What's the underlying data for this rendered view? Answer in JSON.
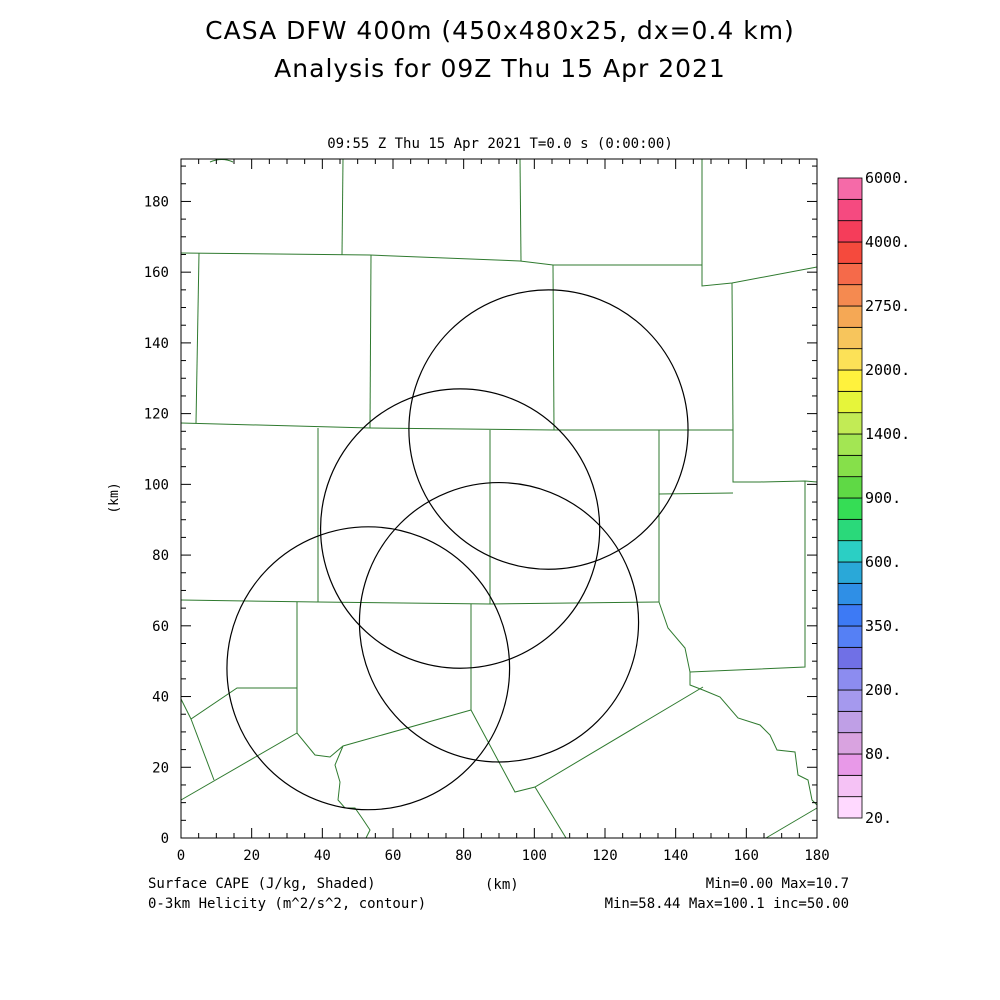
{
  "header": {
    "title_line1": "CASA DFW 400m (450x480x25, dx=0.4 km)",
    "title_line2": "Analysis for 09Z Thu 15 Apr 2021",
    "timestamp": "09:55 Z Thu 15 Apr 2021   T=0.0 s (0:00:00)"
  },
  "axes": {
    "x_label": "(km)",
    "y_label": "(km)",
    "xlim": [
      0,
      180
    ],
    "ylim": [
      0,
      192
    ],
    "x_ticks": [
      "0",
      "20",
      "40",
      "60",
      "80",
      "100",
      "120",
      "140",
      "160",
      "180"
    ],
    "y_ticks": [
      "0",
      "20",
      "40",
      "60",
      "80",
      "100",
      "120",
      "140",
      "160",
      "180"
    ]
  },
  "colorbar": {
    "colors": [
      "#ffd9ff",
      "#f5c2f5",
      "#e899e8",
      "#d9a3e0",
      "#bf9fe6",
      "#a599ee",
      "#8c8cf0",
      "#7070e6",
      "#5580f5",
      "#3d7af5",
      "#2f8fe6",
      "#2aa8d8",
      "#2bcfc4",
      "#2ad97a",
      "#35dd55",
      "#5fd945",
      "#86e04a",
      "#a3e653",
      "#c2eb55",
      "#e6f53a",
      "#fff23d",
      "#fce157",
      "#f7c55c",
      "#f5a855",
      "#f58a50",
      "#f56a4a",
      "#f54a3d",
      "#f53d5a",
      "#f54a80",
      "#f56aa8"
    ],
    "labels": [
      "20.",
      "80.",
      "200.",
      "350.",
      "600.",
      "900.",
      "1400.",
      "2000.",
      "2750.",
      "4000.",
      "6000."
    ]
  },
  "footer": {
    "field1_label": "Surface CAPE (J/kg, Shaded)",
    "field2_label": "0-3km Helicity (m^2/s^2, contour)",
    "x_axis_label": "(km)",
    "field1_stats": "Min=0.00 Max=10.7",
    "field2_stats": "Min=58.44 Max=100.1 inc=50.00"
  },
  "map": {
    "boundary_color": "#2f7a2f",
    "contour_color": "#000000",
    "radar_rings": [
      {
        "cx_km": 104,
        "cy_km": 115.5,
        "r_km": 39.5
      },
      {
        "cx_km": 79,
        "cy_km": 87.5,
        "r_km": 39.5
      },
      {
        "cx_km": 90,
        "cy_km": 61,
        "r_km": 39.5
      },
      {
        "cx_km": 53,
        "cy_km": 48,
        "r_km": 40
      }
    ]
  }
}
